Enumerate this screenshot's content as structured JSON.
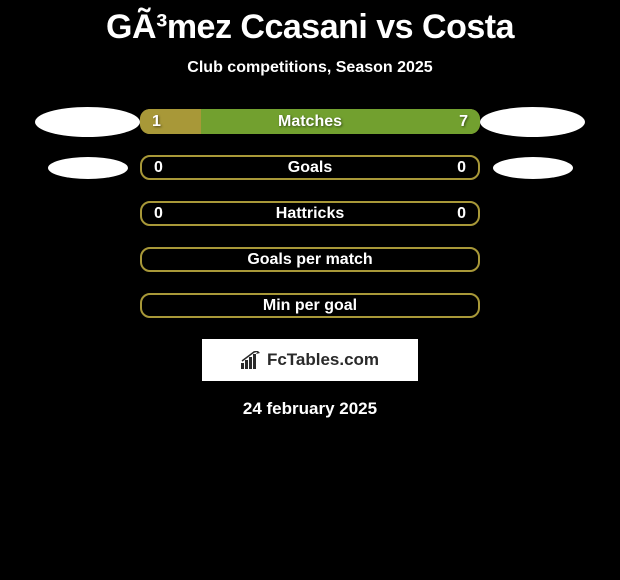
{
  "title": "GÃ³mez Ccasani vs Costa",
  "subtitle": "Club competitions, Season 2025",
  "colors": {
    "background": "#000000",
    "primary_bar": "#a89838",
    "secondary_bar": "#72a02f",
    "text": "#ffffff",
    "ellipse": "#ffffff",
    "logo_bg": "#ffffff",
    "logo_text": "#2a2a2a"
  },
  "stats": [
    {
      "label": "Matches",
      "left_value": "1",
      "right_value": "7",
      "left_fill_pct": 18,
      "right_fill_pct": 82,
      "show_values": true,
      "has_ellipses": true,
      "ellipse_size": "large"
    },
    {
      "label": "Goals",
      "left_value": "0",
      "right_value": "0",
      "left_fill_pct": 0,
      "right_fill_pct": 0,
      "show_values": true,
      "has_ellipses": true,
      "ellipse_size": "small"
    },
    {
      "label": "Hattricks",
      "left_value": "0",
      "right_value": "0",
      "left_fill_pct": 0,
      "right_fill_pct": 0,
      "show_values": true,
      "has_ellipses": false
    },
    {
      "label": "Goals per match",
      "left_value": "",
      "right_value": "",
      "left_fill_pct": 0,
      "right_fill_pct": 0,
      "show_values": false,
      "has_ellipses": false
    },
    {
      "label": "Min per goal",
      "left_value": "",
      "right_value": "",
      "left_fill_pct": 0,
      "right_fill_pct": 0,
      "show_values": false,
      "has_ellipses": false
    }
  ],
  "logo_text": "FcTables.com",
  "date": "24 february 2025"
}
